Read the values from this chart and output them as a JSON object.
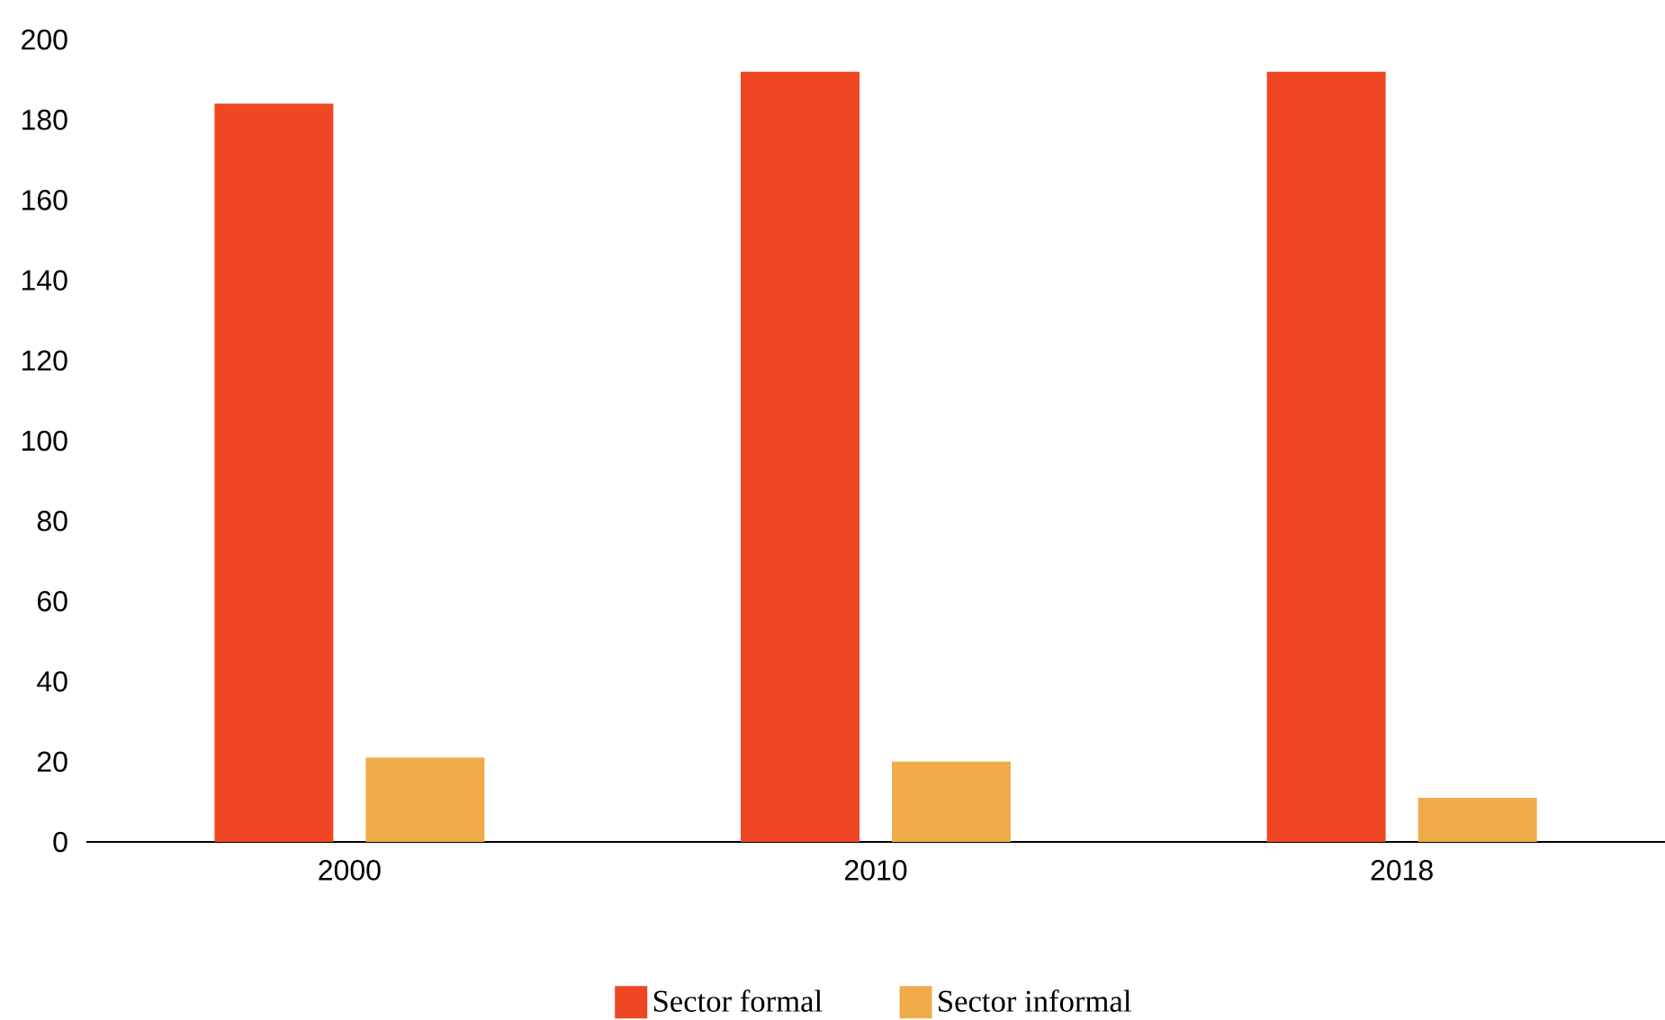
{
  "chart_data": {
    "type": "bar",
    "categories": [
      "2000",
      "2010",
      "2018"
    ],
    "series": [
      {
        "name": "Sector formal",
        "color": "#ef4623",
        "values": [
          184,
          192,
          192
        ]
      },
      {
        "name": "Sector informal",
        "color": "#f0ac4b",
        "values": [
          21,
          20,
          11
        ]
      }
    ],
    "ylim": [
      0,
      200
    ],
    "yticks": [
      0,
      20,
      40,
      60,
      80,
      100,
      120,
      140,
      160,
      180,
      200
    ],
    "legend": "bottom"
  }
}
